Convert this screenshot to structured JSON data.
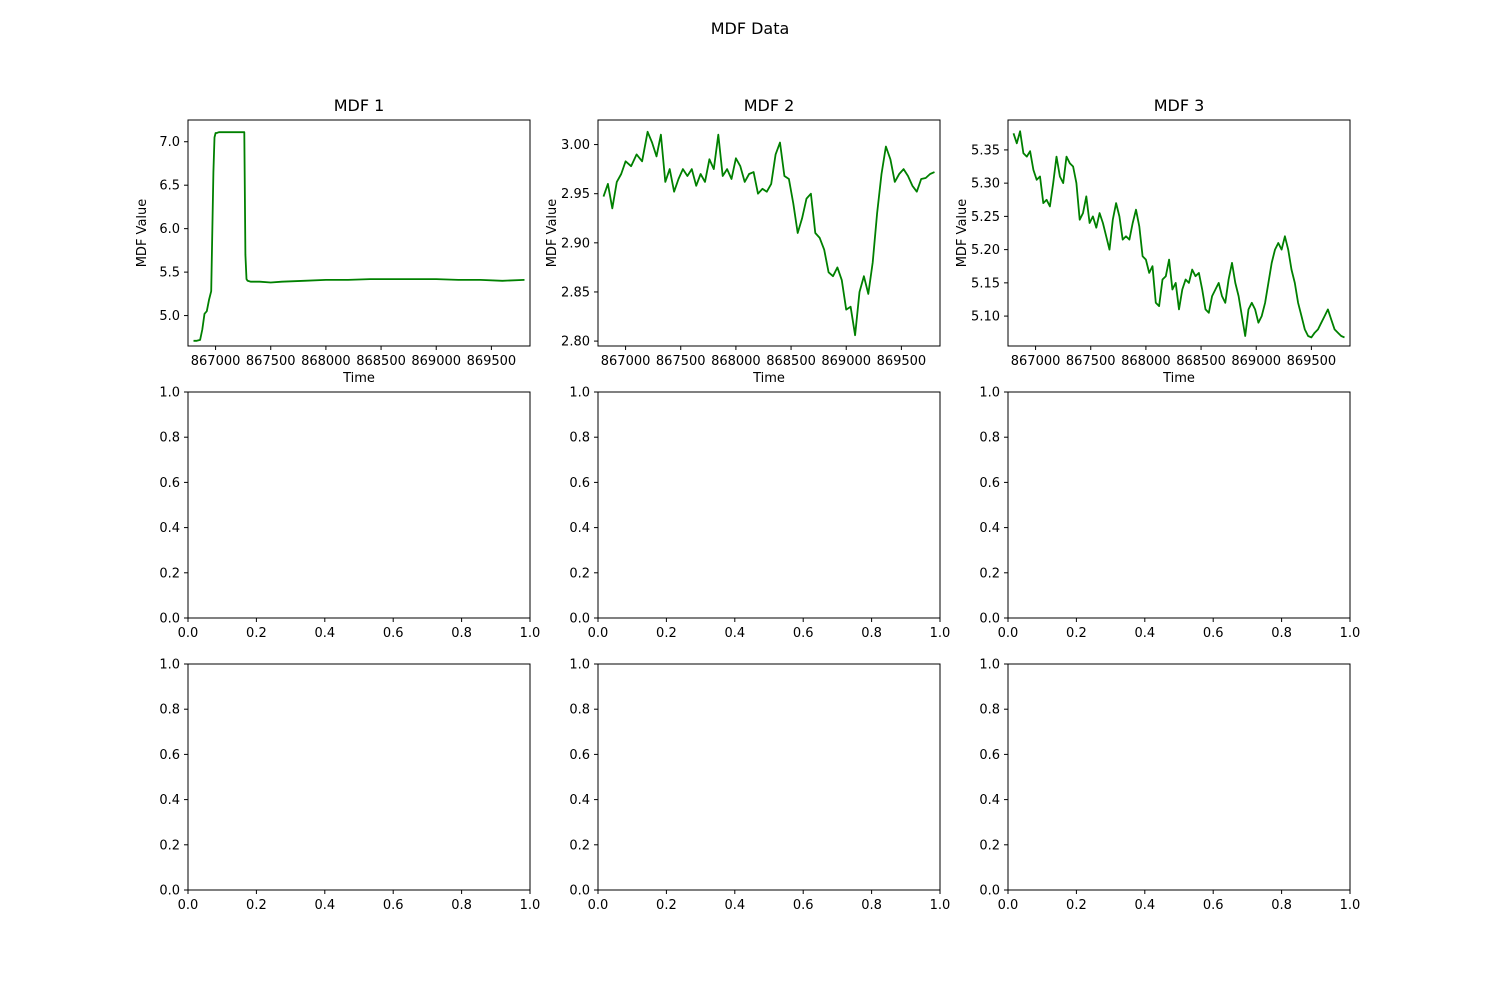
{
  "suptitle": "MDF Data",
  "chart_data": [
    {
      "type": "line",
      "title": "MDF 1",
      "xlabel": "Time",
      "ylabel": "MDF Value",
      "line_color": "#008000",
      "xlim": [
        866750,
        869850
      ],
      "ylim": [
        4.65,
        7.25
      ],
      "xticks": [
        867000,
        867500,
        868000,
        868500,
        869000,
        869500
      ],
      "xtick_labels": [
        "867000",
        "867500",
        "868000",
        "868500",
        "869000",
        "869500"
      ],
      "yticks": [
        5.0,
        5.5,
        6.0,
        6.5,
        7.0
      ],
      "ytick_labels": [
        "5.0",
        "5.5",
        "6.0",
        "6.5",
        "7.0"
      ],
      "x": [
        866800,
        866830,
        866860,
        866880,
        866900,
        866920,
        866940,
        866960,
        866980,
        866990,
        867000,
        867010,
        867030,
        867060,
        867100,
        867150,
        867200,
        867260,
        867270,
        867280,
        867290,
        867320,
        867400,
        867500,
        867600,
        867800,
        868000,
        868200,
        868400,
        868600,
        868800,
        869000,
        869200,
        869400,
        869600,
        869800
      ],
      "y": [
        4.71,
        4.71,
        4.72,
        4.84,
        5.02,
        5.05,
        5.18,
        5.28,
        6.65,
        7.05,
        7.1,
        7.1,
        7.11,
        7.11,
        7.11,
        7.11,
        7.11,
        7.11,
        5.7,
        5.42,
        5.4,
        5.39,
        5.39,
        5.38,
        5.39,
        5.4,
        5.41,
        5.41,
        5.42,
        5.42,
        5.42,
        5.42,
        5.41,
        5.41,
        5.4,
        5.41
      ]
    },
    {
      "type": "line",
      "title": "MDF 2",
      "xlabel": "Time",
      "ylabel": "MDF Value",
      "line_color": "#008000",
      "xlim": [
        866750,
        869850
      ],
      "ylim": [
        2.795,
        3.025
      ],
      "xticks": [
        867000,
        867500,
        868000,
        868500,
        869000,
        869500
      ],
      "xtick_labels": [
        "867000",
        "867500",
        "868000",
        "868500",
        "869000",
        "869500"
      ],
      "yticks": [
        2.8,
        2.85,
        2.9,
        2.95,
        3.0
      ],
      "ytick_labels": [
        "2.80",
        "2.85",
        "2.90",
        "2.95",
        "3.00"
      ],
      "x": [
        866800,
        866840,
        866880,
        866920,
        866960,
        867000,
        867050,
        867100,
        867150,
        867200,
        867240,
        867280,
        867320,
        867360,
        867400,
        867440,
        867480,
        867520,
        867560,
        867600,
        867640,
        867680,
        867720,
        867760,
        867800,
        867840,
        867880,
        867920,
        867960,
        868000,
        868040,
        868080,
        868120,
        868160,
        868200,
        868240,
        868280,
        868320,
        868360,
        868400,
        868440,
        868480,
        868520,
        868560,
        868600,
        868640,
        868680,
        868720,
        868760,
        868800,
        868840,
        868880,
        868920,
        868960,
        869000,
        869040,
        869080,
        869120,
        869160,
        869200,
        869240,
        869280,
        869320,
        869360,
        869400,
        869440,
        869480,
        869520,
        869560,
        869600,
        869640,
        869680,
        869720,
        869760,
        869800
      ],
      "y": [
        2.947,
        2.96,
        2.935,
        2.962,
        2.97,
        2.983,
        2.978,
        2.99,
        2.983,
        3.013,
        3.002,
        2.988,
        3.01,
        2.962,
        2.975,
        2.952,
        2.965,
        2.975,
        2.968,
        2.975,
        2.958,
        2.97,
        2.962,
        2.985,
        2.975,
        3.01,
        2.968,
        2.975,
        2.965,
        2.986,
        2.978,
        2.962,
        2.97,
        2.972,
        2.95,
        2.955,
        2.952,
        2.96,
        2.99,
        3.002,
        2.968,
        2.965,
        2.94,
        2.91,
        2.925,
        2.945,
        2.95,
        2.91,
        2.905,
        2.893,
        2.87,
        2.866,
        2.875,
        2.862,
        2.832,
        2.835,
        2.806,
        2.85,
        2.866,
        2.848,
        2.88,
        2.93,
        2.97,
        2.998,
        2.985,
        2.962,
        2.97,
        2.975,
        2.968,
        2.958,
        2.952,
        2.965,
        2.966,
        2.97,
        2.972
      ]
    },
    {
      "type": "line",
      "title": "MDF 3",
      "xlabel": "Time",
      "ylabel": "MDF Value",
      "line_color": "#008000",
      "xlim": [
        866750,
        869850
      ],
      "ylim": [
        5.055,
        5.395
      ],
      "xticks": [
        867000,
        867500,
        868000,
        868500,
        869000,
        869500
      ],
      "xtick_labels": [
        "867000",
        "867500",
        "868000",
        "868500",
        "869000",
        "869500"
      ],
      "yticks": [
        5.1,
        5.15,
        5.2,
        5.25,
        5.3,
        5.35
      ],
      "ytick_labels": [
        "5.10",
        "5.15",
        "5.20",
        "5.25",
        "5.30",
        "5.35"
      ],
      "x": [
        866800,
        866830,
        866860,
        866890,
        866920,
        866950,
        866980,
        867010,
        867040,
        867070,
        867100,
        867130,
        867160,
        867190,
        867220,
        867250,
        867280,
        867310,
        867340,
        867370,
        867400,
        867430,
        867460,
        867490,
        867520,
        867550,
        867580,
        867610,
        867640,
        867670,
        867700,
        867730,
        867760,
        867790,
        867820,
        867850,
        867880,
        867910,
        867940,
        867970,
        868000,
        868030,
        868060,
        868090,
        868120,
        868150,
        868180,
        868210,
        868240,
        868270,
        868300,
        868330,
        868360,
        868390,
        868420,
        868450,
        868480,
        868510,
        868540,
        868570,
        868600,
        868630,
        868660,
        868690,
        868720,
        868750,
        868780,
        868810,
        868840,
        868870,
        868900,
        868930,
        868960,
        868990,
        869020,
        869050,
        869080,
        869110,
        869140,
        869170,
        869200,
        869230,
        869260,
        869290,
        869320,
        869350,
        869380,
        869410,
        869440,
        869470,
        869500,
        869530,
        869560,
        869590,
        869620,
        869650,
        869680,
        869710,
        869740,
        869770,
        869800
      ],
      "y": [
        5.375,
        5.36,
        5.378,
        5.345,
        5.34,
        5.348,
        5.32,
        5.305,
        5.31,
        5.27,
        5.275,
        5.265,
        5.3,
        5.34,
        5.31,
        5.3,
        5.34,
        5.33,
        5.325,
        5.3,
        5.245,
        5.255,
        5.28,
        5.24,
        5.25,
        5.233,
        5.255,
        5.24,
        5.22,
        5.2,
        5.245,
        5.27,
        5.25,
        5.215,
        5.22,
        5.215,
        5.24,
        5.26,
        5.235,
        5.19,
        5.185,
        5.165,
        5.175,
        5.12,
        5.115,
        5.155,
        5.16,
        5.185,
        5.14,
        5.15,
        5.11,
        5.14,
        5.155,
        5.15,
        5.17,
        5.16,
        5.165,
        5.14,
        5.11,
        5.105,
        5.13,
        5.14,
        5.15,
        5.13,
        5.12,
        5.155,
        5.18,
        5.15,
        5.13,
        5.1,
        5.07,
        5.11,
        5.12,
        5.11,
        5.09,
        5.1,
        5.12,
        5.15,
        5.18,
        5.2,
        5.21,
        5.2,
        5.22,
        5.2,
        5.17,
        5.15,
        5.12,
        5.1,
        5.08,
        5.07,
        5.068,
        5.075,
        5.08,
        5.09,
        5.1,
        5.11,
        5.095,
        5.08,
        5.075,
        5.07,
        5.068
      ]
    },
    {
      "type": "line",
      "title": "",
      "xlabel": "",
      "ylabel": "",
      "xlim": [
        0,
        1
      ],
      "ylim": [
        0,
        1
      ],
      "xticks": [
        0,
        0.2,
        0.4,
        0.6,
        0.8,
        1.0
      ],
      "xtick_labels": [
        "0.0",
        "0.2",
        "0.4",
        "0.6",
        "0.8",
        "1.0"
      ],
      "yticks": [
        0,
        0.2,
        0.4,
        0.6,
        0.8,
        1.0
      ],
      "ytick_labels": [
        "0.0",
        "0.2",
        "0.4",
        "0.6",
        "0.8",
        "1.0"
      ],
      "x": [],
      "y": []
    },
    {
      "type": "line",
      "title": "",
      "xlabel": "",
      "ylabel": "",
      "xlim": [
        0,
        1
      ],
      "ylim": [
        0,
        1
      ],
      "xticks": [
        0,
        0.2,
        0.4,
        0.6,
        0.8,
        1.0
      ],
      "xtick_labels": [
        "0.0",
        "0.2",
        "0.4",
        "0.6",
        "0.8",
        "1.0"
      ],
      "yticks": [
        0,
        0.2,
        0.4,
        0.6,
        0.8,
        1.0
      ],
      "ytick_labels": [
        "0.0",
        "0.2",
        "0.4",
        "0.6",
        "0.8",
        "1.0"
      ],
      "x": [],
      "y": []
    },
    {
      "type": "line",
      "title": "",
      "xlabel": "",
      "ylabel": "",
      "xlim": [
        0,
        1
      ],
      "ylim": [
        0,
        1
      ],
      "xticks": [
        0,
        0.2,
        0.4,
        0.6,
        0.8,
        1.0
      ],
      "xtick_labels": [
        "0.0",
        "0.2",
        "0.4",
        "0.6",
        "0.8",
        "1.0"
      ],
      "yticks": [
        0,
        0.2,
        0.4,
        0.6,
        0.8,
        1.0
      ],
      "ytick_labels": [
        "0.0",
        "0.2",
        "0.4",
        "0.6",
        "0.8",
        "1.0"
      ],
      "x": [],
      "y": []
    },
    {
      "type": "line",
      "title": "",
      "xlabel": "",
      "ylabel": "",
      "xlim": [
        0,
        1
      ],
      "ylim": [
        0,
        1
      ],
      "xticks": [
        0,
        0.2,
        0.4,
        0.6,
        0.8,
        1.0
      ],
      "xtick_labels": [
        "0.0",
        "0.2",
        "0.4",
        "0.6",
        "0.8",
        "1.0"
      ],
      "yticks": [
        0,
        0.2,
        0.4,
        0.6,
        0.8,
        1.0
      ],
      "ytick_labels": [
        "0.0",
        "0.2",
        "0.4",
        "0.6",
        "0.8",
        "1.0"
      ],
      "x": [],
      "y": []
    },
    {
      "type": "line",
      "title": "",
      "xlabel": "",
      "ylabel": "",
      "xlim": [
        0,
        1
      ],
      "ylim": [
        0,
        1
      ],
      "xticks": [
        0,
        0.2,
        0.4,
        0.6,
        0.8,
        1.0
      ],
      "xtick_labels": [
        "0.0",
        "0.2",
        "0.4",
        "0.6",
        "0.8",
        "1.0"
      ],
      "yticks": [
        0,
        0.2,
        0.4,
        0.6,
        0.8,
        1.0
      ],
      "ytick_labels": [
        "0.0",
        "0.2",
        "0.4",
        "0.6",
        "0.8",
        "1.0"
      ],
      "x": [],
      "y": []
    },
    {
      "type": "line",
      "title": "",
      "xlabel": "",
      "ylabel": "",
      "xlim": [
        0,
        1
      ],
      "ylim": [
        0,
        1
      ],
      "xticks": [
        0,
        0.2,
        0.4,
        0.6,
        0.8,
        1.0
      ],
      "xtick_labels": [
        "0.0",
        "0.2",
        "0.4",
        "0.6",
        "0.8",
        "1.0"
      ],
      "yticks": [
        0,
        0.2,
        0.4,
        0.6,
        0.8,
        1.0
      ],
      "ytick_labels": [
        "0.0",
        "0.2",
        "0.4",
        "0.6",
        "0.8",
        "1.0"
      ],
      "x": [],
      "y": []
    }
  ]
}
